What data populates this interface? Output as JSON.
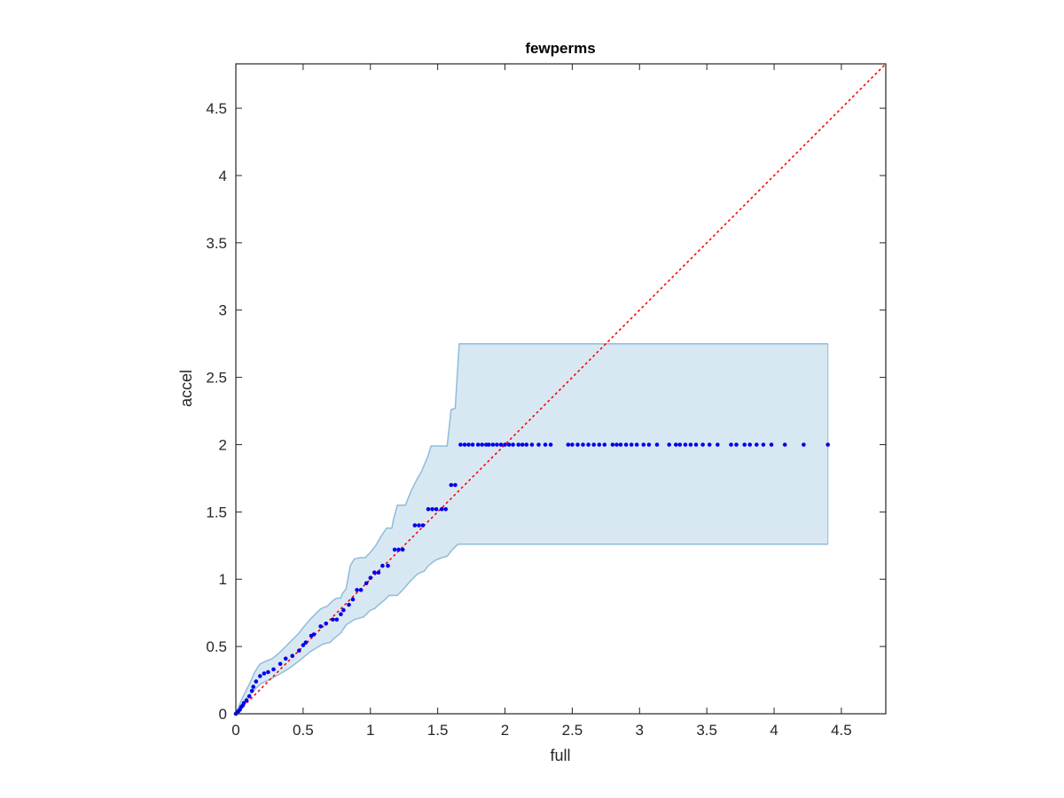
{
  "chart_data": {
    "type": "scatter",
    "title": "fewperms",
    "xlabel": "full",
    "ylabel": "accel",
    "xlim": [
      0,
      4.83
    ],
    "ylim": [
      0,
      4.83
    ],
    "xticks": [
      0,
      0.5,
      1,
      1.5,
      2,
      2.5,
      3,
      3.5,
      4,
      4.5
    ],
    "xtick_labels": [
      "0",
      "0.5",
      "1",
      "1.5",
      "2",
      "2.5",
      "3",
      "3.5",
      "4",
      "4.5"
    ],
    "yticks": [
      0,
      0.5,
      1,
      1.5,
      2,
      2.5,
      3,
      3.5,
      4,
      4.5
    ],
    "ytick_labels": [
      "0",
      "0.5",
      "1",
      "1.5",
      "2",
      "2.5",
      "3",
      "3.5",
      "4",
      "4.5"
    ],
    "grid": false,
    "colors": {
      "points": "#0000ee",
      "reference_line": "#ff0000",
      "band_fill": "#d8e8f3",
      "band_edge": "#8fbcdb",
      "axes": "#262626"
    },
    "reference_line": {
      "style": "dotted",
      "from": [
        0,
        0
      ],
      "to": [
        4.83,
        4.83
      ]
    },
    "band_upper": [
      [
        0,
        0
      ],
      [
        0.02,
        0.05
      ],
      [
        0.05,
        0.12
      ],
      [
        0.08,
        0.18
      ],
      [
        0.11,
        0.24
      ],
      [
        0.14,
        0.31
      ],
      [
        0.18,
        0.37
      ],
      [
        0.22,
        0.39
      ],
      [
        0.27,
        0.41
      ],
      [
        0.32,
        0.45
      ],
      [
        0.37,
        0.5
      ],
      [
        0.42,
        0.55
      ],
      [
        0.47,
        0.6
      ],
      [
        0.5,
        0.64
      ],
      [
        0.55,
        0.7
      ],
      [
        0.6,
        0.75
      ],
      [
        0.63,
        0.78
      ],
      [
        0.68,
        0.8
      ],
      [
        0.72,
        0.84
      ],
      [
        0.75,
        0.86
      ],
      [
        0.78,
        0.86
      ],
      [
        0.79,
        0.89
      ],
      [
        0.82,
        0.93
      ],
      [
        0.85,
        1.1
      ],
      [
        0.88,
        1.15
      ],
      [
        0.92,
        1.16
      ],
      [
        0.96,
        1.16
      ],
      [
        1.0,
        1.2
      ],
      [
        1.04,
        1.25
      ],
      [
        1.08,
        1.32
      ],
      [
        1.12,
        1.38
      ],
      [
        1.16,
        1.38
      ],
      [
        1.17,
        1.44
      ],
      [
        1.2,
        1.55
      ],
      [
        1.26,
        1.55
      ],
      [
        1.3,
        1.65
      ],
      [
        1.35,
        1.75
      ],
      [
        1.38,
        1.8
      ],
      [
        1.43,
        1.92
      ],
      [
        1.45,
        1.99
      ],
      [
        1.57,
        1.99
      ],
      [
        1.6,
        2.26
      ],
      [
        1.63,
        2.27
      ],
      [
        1.66,
        2.75
      ],
      [
        4.4,
        2.75
      ]
    ],
    "band_lower": [
      [
        0,
        0
      ],
      [
        0.05,
        0.08
      ],
      [
        0.1,
        0.14
      ],
      [
        0.15,
        0.19
      ],
      [
        0.18,
        0.22
      ],
      [
        0.24,
        0.25
      ],
      [
        0.3,
        0.28
      ],
      [
        0.35,
        0.31
      ],
      [
        0.4,
        0.34
      ],
      [
        0.48,
        0.4
      ],
      [
        0.55,
        0.46
      ],
      [
        0.6,
        0.49
      ],
      [
        0.65,
        0.52
      ],
      [
        0.7,
        0.53
      ],
      [
        0.73,
        0.56
      ],
      [
        0.78,
        0.6
      ],
      [
        0.82,
        0.66
      ],
      [
        0.88,
        0.7
      ],
      [
        0.95,
        0.72
      ],
      [
        1.0,
        0.77
      ],
      [
        1.03,
        0.78
      ],
      [
        1.05,
        0.8
      ],
      [
        1.1,
        0.84
      ],
      [
        1.14,
        0.88
      ],
      [
        1.2,
        0.88
      ],
      [
        1.24,
        0.92
      ],
      [
        1.3,
        0.99
      ],
      [
        1.35,
        1.04
      ],
      [
        1.4,
        1.06
      ],
      [
        1.43,
        1.1
      ],
      [
        1.48,
        1.14
      ],
      [
        1.53,
        1.16
      ],
      [
        1.57,
        1.17
      ],
      [
        1.6,
        1.21
      ],
      [
        1.65,
        1.26
      ],
      [
        4.4,
        1.26
      ]
    ],
    "points": [
      [
        0.0,
        0.0
      ],
      [
        0.01,
        0.01
      ],
      [
        0.02,
        0.02
      ],
      [
        0.03,
        0.03
      ],
      [
        0.04,
        0.05
      ],
      [
        0.05,
        0.06
      ],
      [
        0.06,
        0.08
      ],
      [
        0.08,
        0.1
      ],
      [
        0.1,
        0.13
      ],
      [
        0.12,
        0.17
      ],
      [
        0.13,
        0.2
      ],
      [
        0.15,
        0.24
      ],
      [
        0.18,
        0.28
      ],
      [
        0.21,
        0.3
      ],
      [
        0.24,
        0.31
      ],
      [
        0.28,
        0.33
      ],
      [
        0.33,
        0.37
      ],
      [
        0.37,
        0.41
      ],
      [
        0.42,
        0.43
      ],
      [
        0.47,
        0.47
      ],
      [
        0.5,
        0.51
      ],
      [
        0.52,
        0.53
      ],
      [
        0.56,
        0.58
      ],
      [
        0.58,
        0.59
      ],
      [
        0.63,
        0.65
      ],
      [
        0.67,
        0.67
      ],
      [
        0.72,
        0.7
      ],
      [
        0.75,
        0.7
      ],
      [
        0.78,
        0.74
      ],
      [
        0.8,
        0.77
      ],
      [
        0.84,
        0.81
      ],
      [
        0.87,
        0.85
      ],
      [
        0.9,
        0.92
      ],
      [
        0.93,
        0.92
      ],
      [
        0.97,
        0.97
      ],
      [
        1.0,
        1.01
      ],
      [
        1.03,
        1.05
      ],
      [
        1.06,
        1.05
      ],
      [
        1.09,
        1.1
      ],
      [
        1.13,
        1.1
      ],
      [
        1.18,
        1.22
      ],
      [
        1.21,
        1.22
      ],
      [
        1.24,
        1.22
      ],
      [
        1.33,
        1.4
      ],
      [
        1.36,
        1.4
      ],
      [
        1.39,
        1.4
      ],
      [
        1.43,
        1.52
      ],
      [
        1.46,
        1.52
      ],
      [
        1.49,
        1.52
      ],
      [
        1.53,
        1.52
      ],
      [
        1.56,
        1.52
      ],
      [
        1.6,
        1.7
      ],
      [
        1.63,
        1.7
      ],
      [
        1.67,
        2.0
      ],
      [
        1.7,
        2.0
      ],
      [
        1.73,
        2.0
      ],
      [
        1.76,
        2.0
      ],
      [
        1.8,
        2.0
      ],
      [
        1.83,
        2.0
      ],
      [
        1.86,
        2.0
      ],
      [
        1.88,
        2.0
      ],
      [
        1.91,
        2.0
      ],
      [
        1.94,
        2.0
      ],
      [
        1.97,
        2.0
      ],
      [
        2.0,
        2.0
      ],
      [
        2.03,
        2.0
      ],
      [
        2.06,
        2.0
      ],
      [
        2.1,
        2.0
      ],
      [
        2.13,
        2.0
      ],
      [
        2.16,
        2.0
      ],
      [
        2.2,
        2.0
      ],
      [
        2.25,
        2.0
      ],
      [
        2.3,
        2.0
      ],
      [
        2.34,
        2.0
      ],
      [
        2.47,
        2.0
      ],
      [
        2.5,
        2.0
      ],
      [
        2.54,
        2.0
      ],
      [
        2.58,
        2.0
      ],
      [
        2.62,
        2.0
      ],
      [
        2.66,
        2.0
      ],
      [
        2.7,
        2.0
      ],
      [
        2.74,
        2.0
      ],
      [
        2.8,
        2.0
      ],
      [
        2.83,
        2.0
      ],
      [
        2.86,
        2.0
      ],
      [
        2.9,
        2.0
      ],
      [
        2.94,
        2.0
      ],
      [
        2.98,
        2.0
      ],
      [
        3.03,
        2.0
      ],
      [
        3.07,
        2.0
      ],
      [
        3.13,
        2.0
      ],
      [
        3.22,
        2.0
      ],
      [
        3.27,
        2.0
      ],
      [
        3.3,
        2.0
      ],
      [
        3.34,
        2.0
      ],
      [
        3.38,
        2.0
      ],
      [
        3.42,
        2.0
      ],
      [
        3.47,
        2.0
      ],
      [
        3.52,
        2.0
      ],
      [
        3.58,
        2.0
      ],
      [
        3.68,
        2.0
      ],
      [
        3.72,
        2.0
      ],
      [
        3.78,
        2.0
      ],
      [
        3.82,
        2.0
      ],
      [
        3.87,
        2.0
      ],
      [
        3.92,
        2.0
      ],
      [
        3.98,
        2.0
      ],
      [
        4.08,
        2.0
      ],
      [
        4.22,
        2.0
      ],
      [
        4.4,
        2.0
      ]
    ]
  }
}
